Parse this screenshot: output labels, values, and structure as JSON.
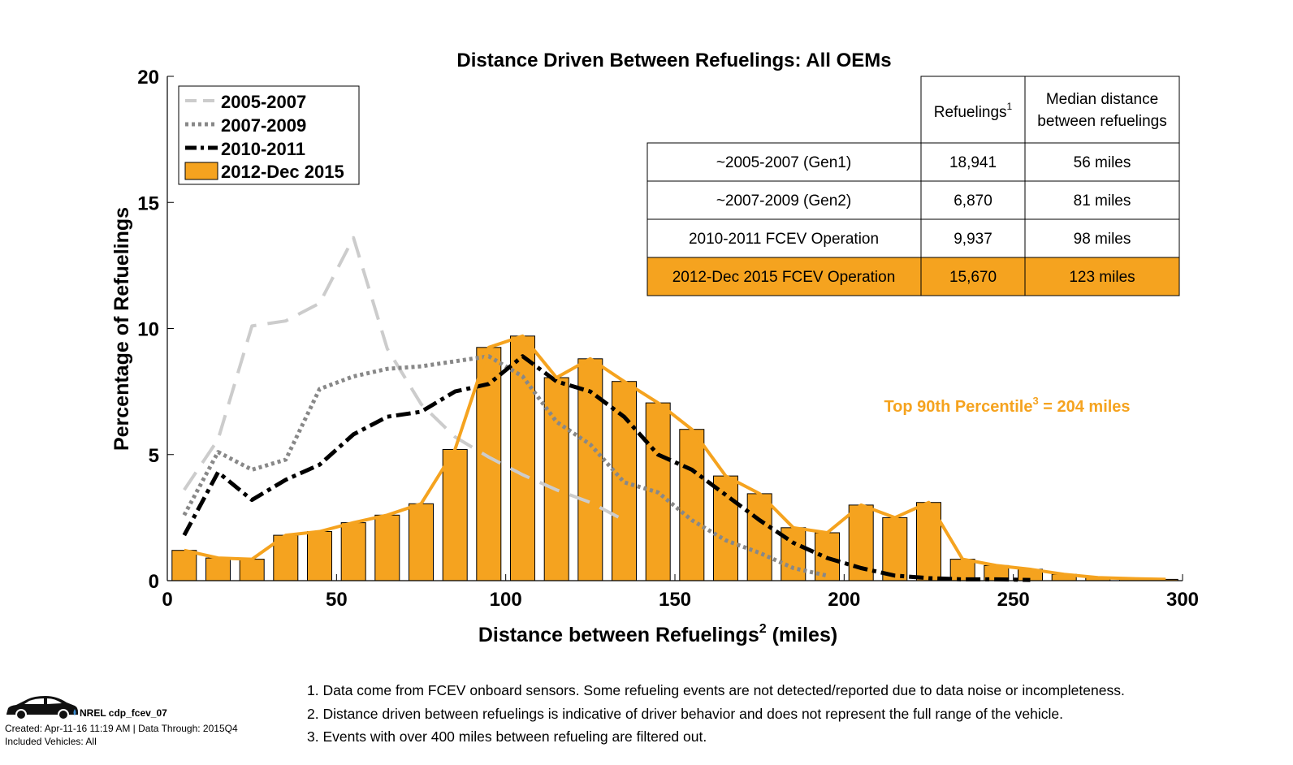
{
  "chart_data": {
    "type": "bar",
    "title": "Distance Driven Between Refuelings: All OEMs",
    "xlabel": "Distance between Refuelings",
    "xlabel_sup": "2",
    "xlabel_suffix": " (miles)",
    "ylabel": "Percentage of Refuelings",
    "xlim": [
      0,
      300
    ],
    "ylim": [
      0,
      20
    ],
    "xticks": [
      0,
      50,
      100,
      150,
      200,
      250,
      300
    ],
    "yticks": [
      0,
      5,
      10,
      15,
      20
    ],
    "legend_position": "top-left",
    "bars": {
      "name": "2012-Dec 2015",
      "color": "#f5a31f",
      "x": [
        5,
        15,
        25,
        35,
        45,
        55,
        65,
        75,
        85,
        95,
        105,
        115,
        125,
        135,
        145,
        155,
        165,
        175,
        185,
        195,
        205,
        215,
        225,
        235,
        245,
        255,
        265,
        275,
        285,
        295
      ],
      "values": [
        1.2,
        0.9,
        0.85,
        1.8,
        1.95,
        2.3,
        2.6,
        3.05,
        5.2,
        9.25,
        9.7,
        8.05,
        8.8,
        7.9,
        7.05,
        6.0,
        4.15,
        3.45,
        2.1,
        1.9,
        3.0,
        2.5,
        3.1,
        0.85,
        0.6,
        0.45,
        0.25,
        0.12,
        0.08,
        0.05
      ]
    },
    "series": [
      {
        "name": "2005-2007",
        "style": "dashed",
        "color": "#cccccc",
        "x": [
          5,
          15,
          25,
          35,
          45,
          55,
          65,
          75,
          85,
          95,
          105,
          115,
          125,
          135
        ],
        "values": [
          3.6,
          5.6,
          10.1,
          10.3,
          11.0,
          13.6,
          9.2,
          7.0,
          5.7,
          4.9,
          4.2,
          3.6,
          3.1,
          2.4
        ]
      },
      {
        "name": "2007-2009",
        "style": "dotted",
        "color": "#888888",
        "x": [
          5,
          15,
          25,
          35,
          45,
          55,
          65,
          75,
          85,
          95,
          105,
          115,
          125,
          135,
          145,
          155,
          165,
          175,
          185,
          195
        ],
        "values": [
          2.6,
          5.1,
          4.4,
          4.8,
          7.6,
          8.1,
          8.4,
          8.5,
          8.7,
          8.9,
          8.1,
          6.3,
          5.4,
          3.9,
          3.5,
          2.4,
          1.6,
          1.1,
          0.5,
          0.2
        ]
      },
      {
        "name": "2010-2011",
        "style": "dashdot",
        "color": "#000000",
        "x": [
          5,
          15,
          25,
          35,
          45,
          55,
          65,
          75,
          85,
          95,
          105,
          115,
          125,
          135,
          145,
          155,
          165,
          175,
          185,
          195,
          205,
          215,
          225,
          235,
          245,
          255
        ],
        "values": [
          1.8,
          4.3,
          3.2,
          4.0,
          4.6,
          5.8,
          6.5,
          6.7,
          7.5,
          7.8,
          8.9,
          7.9,
          7.5,
          6.5,
          5.0,
          4.4,
          3.4,
          2.4,
          1.5,
          0.9,
          0.5,
          0.2,
          0.1,
          0.05,
          0.05,
          0.03
        ]
      },
      {
        "name": "2012-Dec 2015",
        "style": "solid",
        "color": "#f5a31f",
        "x": [
          5,
          15,
          25,
          35,
          45,
          55,
          65,
          75,
          85,
          95,
          105,
          115,
          125,
          135,
          145,
          155,
          165,
          175,
          185,
          195,
          205,
          215,
          225,
          235,
          245,
          255,
          265,
          275,
          285,
          295
        ],
        "values": [
          1.2,
          0.9,
          0.85,
          1.8,
          1.95,
          2.3,
          2.6,
          3.05,
          5.2,
          9.25,
          9.7,
          8.05,
          8.8,
          7.9,
          7.05,
          6.0,
          4.15,
          3.45,
          2.1,
          1.9,
          3.0,
          2.5,
          3.1,
          0.85,
          0.6,
          0.45,
          0.25,
          0.12,
          0.08,
          0.05
        ]
      }
    ],
    "legend": [
      "2005-2007",
      "2007-2009",
      "2010-2011",
      "2012-Dec 2015"
    ],
    "annotation": {
      "text": "Top 90th Percentile",
      "sup": "3",
      "suffix": " = 204 miles",
      "color": "#f5a31f"
    },
    "inset_table": {
      "headers": [
        "Refuelings",
        "Median distance",
        "between refuelings"
      ],
      "header_sup": "1",
      "rows": [
        [
          "~2005-2007 (Gen1)",
          "18,941",
          "56 miles"
        ],
        [
          "~2007-2009 (Gen2)",
          "6,870",
          "81 miles"
        ],
        [
          "2010-2011 FCEV Operation",
          "9,937",
          "98 miles"
        ],
        [
          "2012-Dec 2015 FCEV Operation",
          "15,670",
          "123 miles"
        ]
      ],
      "highlight_row": 3,
      "highlight_color": "#f5a31f"
    }
  },
  "footnotes": {
    "n1": "1. Data come from FCEV onboard sensors. Some refueling events are not detected/reported due to data noise or incompleteness.",
    "n2": "2. Distance driven between refuelings is indicative of driver behavior and does not represent the full range of the vehicle.",
    "n3": "3. Events with over 400 miles between refueling are filtered out."
  },
  "credit": {
    "code": "NREL cdp_fcev_07",
    "created": "Created: Apr-11-16 11:19 AM | Data Through: 2015Q4",
    "vehicles": "Included Vehicles: All",
    "logo_icon": "car-icon"
  }
}
